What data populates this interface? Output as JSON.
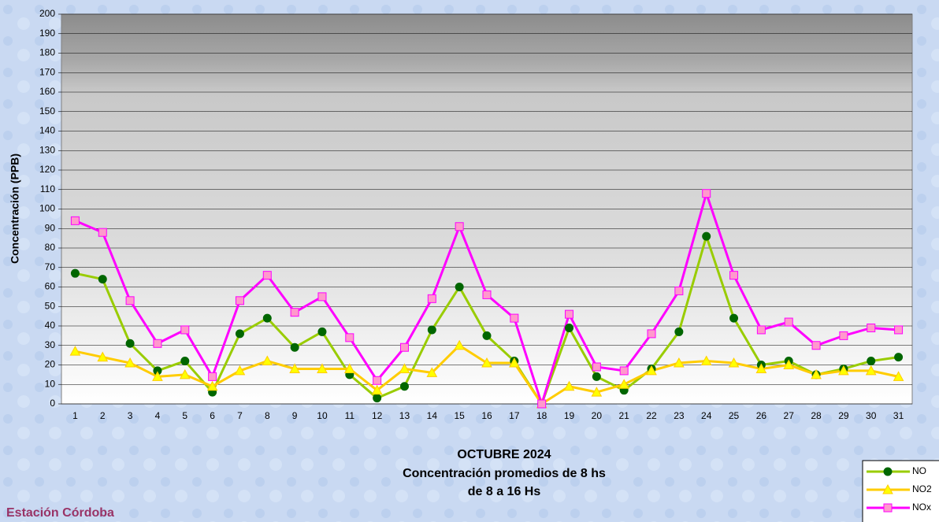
{
  "chart_data": {
    "type": "line",
    "title": "OCTUBRE 2024",
    "subtitle": [
      "Concentración promedios de 8 hs",
      "de 8 a 16 Hs"
    ],
    "station": "Estación Córdoba",
    "y_label": "Concentración (PPB)",
    "categories": [
      "1",
      "2",
      "3",
      "4",
      "5",
      "6",
      "7",
      "8",
      "9",
      "10",
      "11",
      "12",
      "13",
      "14",
      "15",
      "16",
      "17",
      "18",
      "19",
      "20",
      "21",
      "22",
      "23",
      "24",
      "25",
      "26",
      "27",
      "28",
      "29",
      "30",
      "31"
    ],
    "series": [
      {
        "name": "NO",
        "color": "#99cc00",
        "marker": "circle",
        "marker_color": "#006600",
        "values": [
          67,
          64,
          31,
          17,
          22,
          6,
          36,
          44,
          29,
          37,
          15,
          3,
          9,
          38,
          60,
          35,
          22,
          0,
          39,
          14,
          7,
          18,
          37,
          86,
          44,
          20,
          22,
          15,
          18,
          22,
          24
        ]
      },
      {
        "name": "NO2",
        "color": "#ffcc00",
        "marker": "triangle",
        "marker_color": "#ffff00",
        "values": [
          27,
          24,
          21,
          14,
          15,
          9,
          17,
          22,
          18,
          18,
          18,
          7,
          18,
          16,
          30,
          21,
          21,
          0,
          9,
          6,
          10,
          17,
          21,
          22,
          21,
          18,
          20,
          15,
          17,
          17,
          14
        ]
      },
      {
        "name": "NOx",
        "color": "#ff00ff",
        "marker": "square",
        "marker_color": "#ff99cc",
        "values": [
          94,
          88,
          53,
          31,
          38,
          14,
          53,
          66,
          47,
          55,
          34,
          12,
          29,
          54,
          91,
          56,
          44,
          0,
          46,
          19,
          17,
          36,
          58,
          108,
          66,
          38,
          42,
          30,
          35,
          39,
          38
        ]
      }
    ],
    "ylim": [
      0,
      200
    ],
    "yticks": [
      0,
      10,
      20,
      30,
      40,
      50,
      60,
      70,
      80,
      90,
      100,
      110,
      120,
      130,
      140,
      150,
      160,
      170,
      180,
      190,
      200
    ],
    "grid": true
  }
}
